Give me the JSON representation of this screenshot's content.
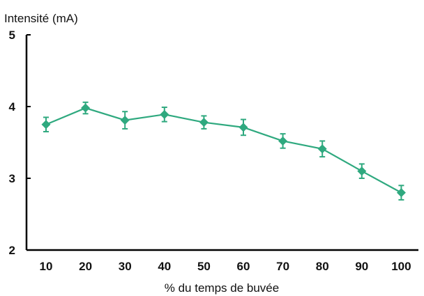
{
  "chart_data": {
    "type": "line",
    "ylabel": "Intensité (mA)",
    "xlabel": "% du temps de buvée",
    "x": [
      10,
      20,
      30,
      40,
      50,
      60,
      70,
      80,
      90,
      100
    ],
    "x_ticks": [
      "10",
      "20",
      "30",
      "40",
      "50",
      "60",
      "70",
      "80",
      "90",
      "100"
    ],
    "y_ticks": [
      "2",
      "3",
      "4",
      "5"
    ],
    "ylim": [
      2,
      5
    ],
    "grid": false,
    "series": [
      {
        "values": [
          3.75,
          3.98,
          3.81,
          3.89,
          3.78,
          3.71,
          3.52,
          3.41,
          3.1,
          2.8
        ],
        "error": [
          0.1,
          0.08,
          0.12,
          0.1,
          0.09,
          0.11,
          0.1,
          0.11,
          0.1,
          0.1
        ],
        "marker": "diamond",
        "color": "#2fa97f"
      }
    ]
  }
}
